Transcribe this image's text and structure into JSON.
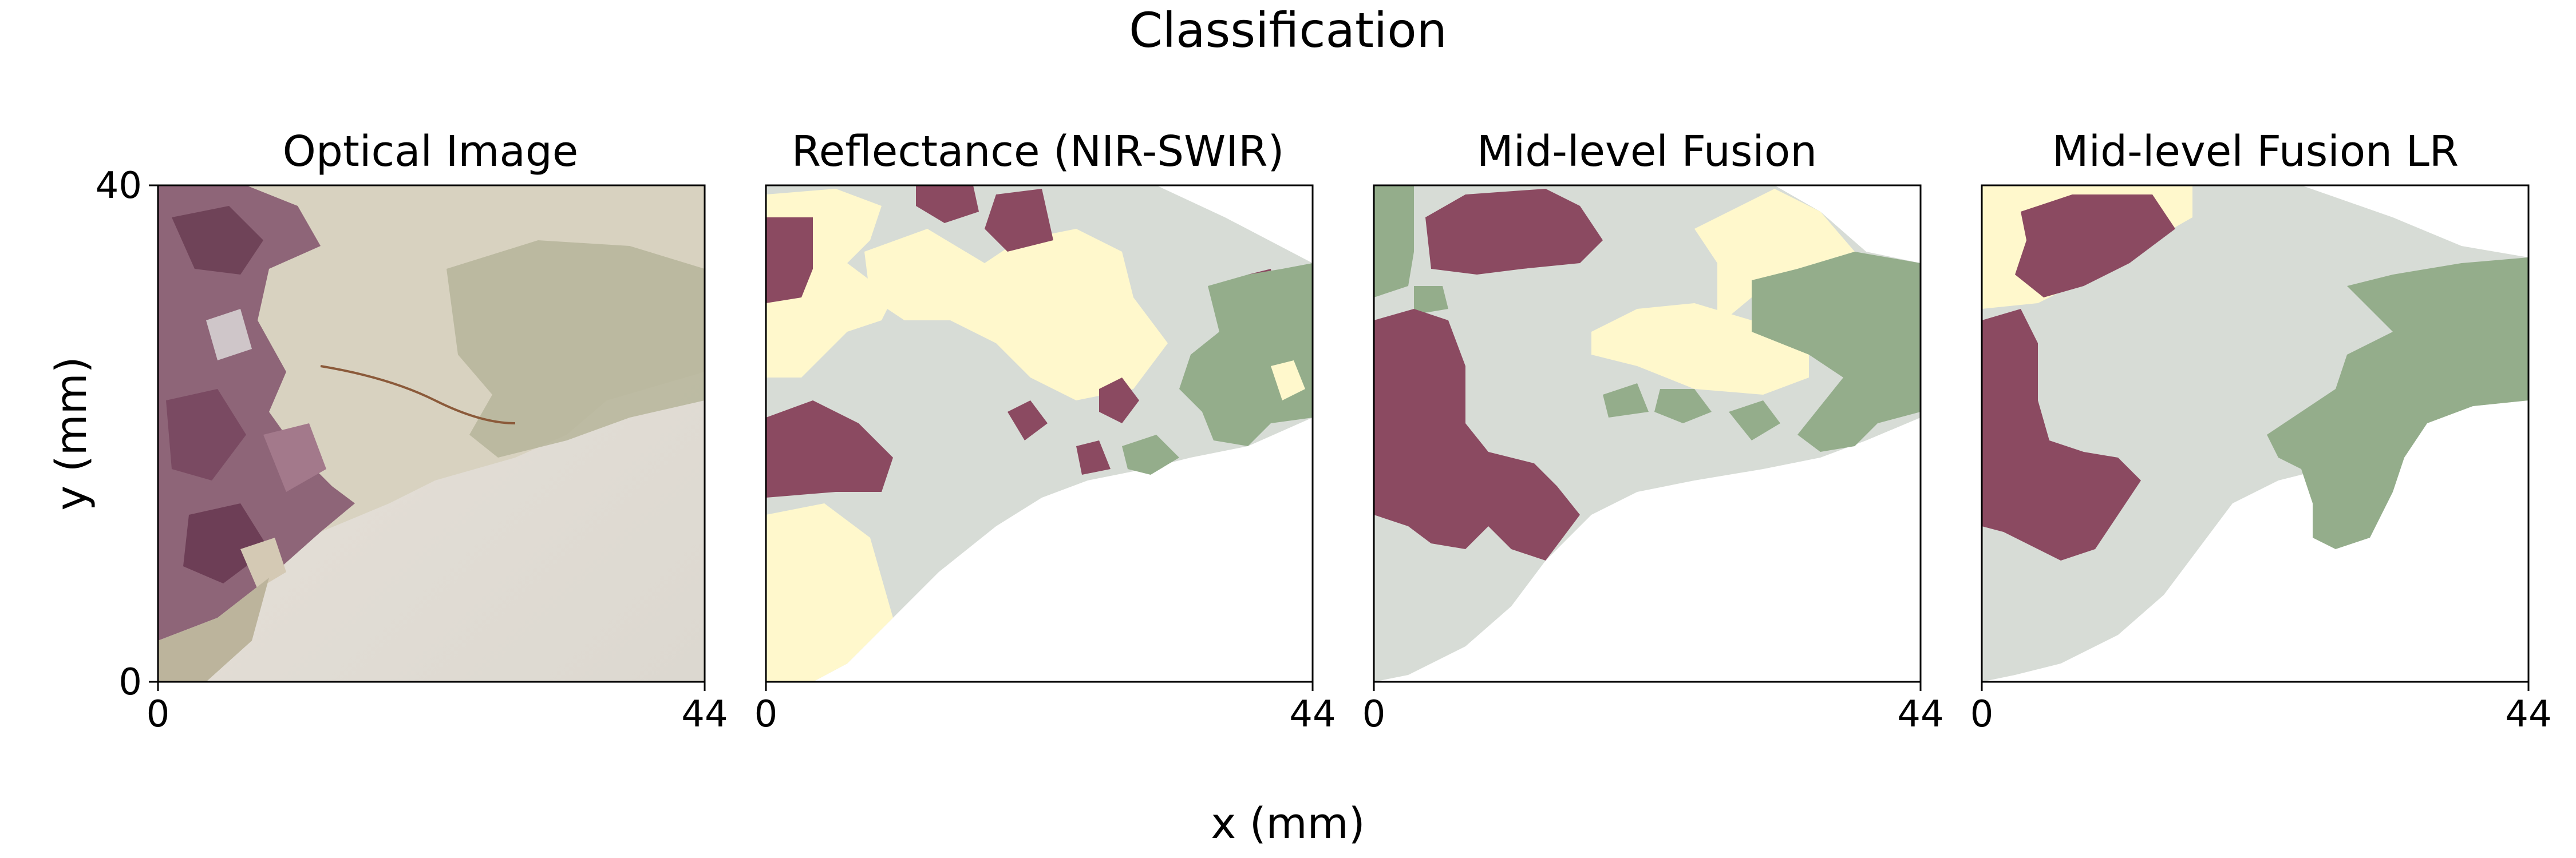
{
  "figure": {
    "suptitle": "Classification",
    "xlabel": "x (mm)",
    "ylabel": "y (mm)"
  },
  "colors": {
    "purple": "#8b4a61",
    "cream": "#fff8cc",
    "gray": "#d7dcd6",
    "green": "#94ad8b",
    "white": "#ffffff"
  },
  "chart_data": [
    {
      "type": "heatmap",
      "title": "Optical Image",
      "xlim": [
        0,
        44
      ],
      "ylim": [
        0,
        40
      ],
      "x_ticks": [
        "0",
        "44"
      ],
      "y_ticks": [
        "0",
        "40"
      ],
      "content": "optical photograph of the sample"
    },
    {
      "type": "heatmap",
      "title": "Reflectance (NIR-SWIR)",
      "xlim": [
        0,
        44
      ],
      "ylim": [
        0,
        40
      ],
      "x_ticks": [
        "0",
        "44"
      ],
      "classes": [
        "purple",
        "cream",
        "gray",
        "green"
      ]
    },
    {
      "type": "heatmap",
      "title": "Mid-level Fusion",
      "xlim": [
        0,
        44
      ],
      "ylim": [
        0,
        40
      ],
      "x_ticks": [
        "0",
        "44"
      ],
      "classes": [
        "purple",
        "cream",
        "gray",
        "green"
      ]
    },
    {
      "type": "heatmap",
      "title": "Mid-level Fusion LR",
      "xlim": [
        0,
        44
      ],
      "ylim": [
        0,
        40
      ],
      "x_ticks": [
        "0",
        "44"
      ],
      "classes": [
        "purple",
        "cream",
        "gray",
        "green"
      ]
    }
  ]
}
